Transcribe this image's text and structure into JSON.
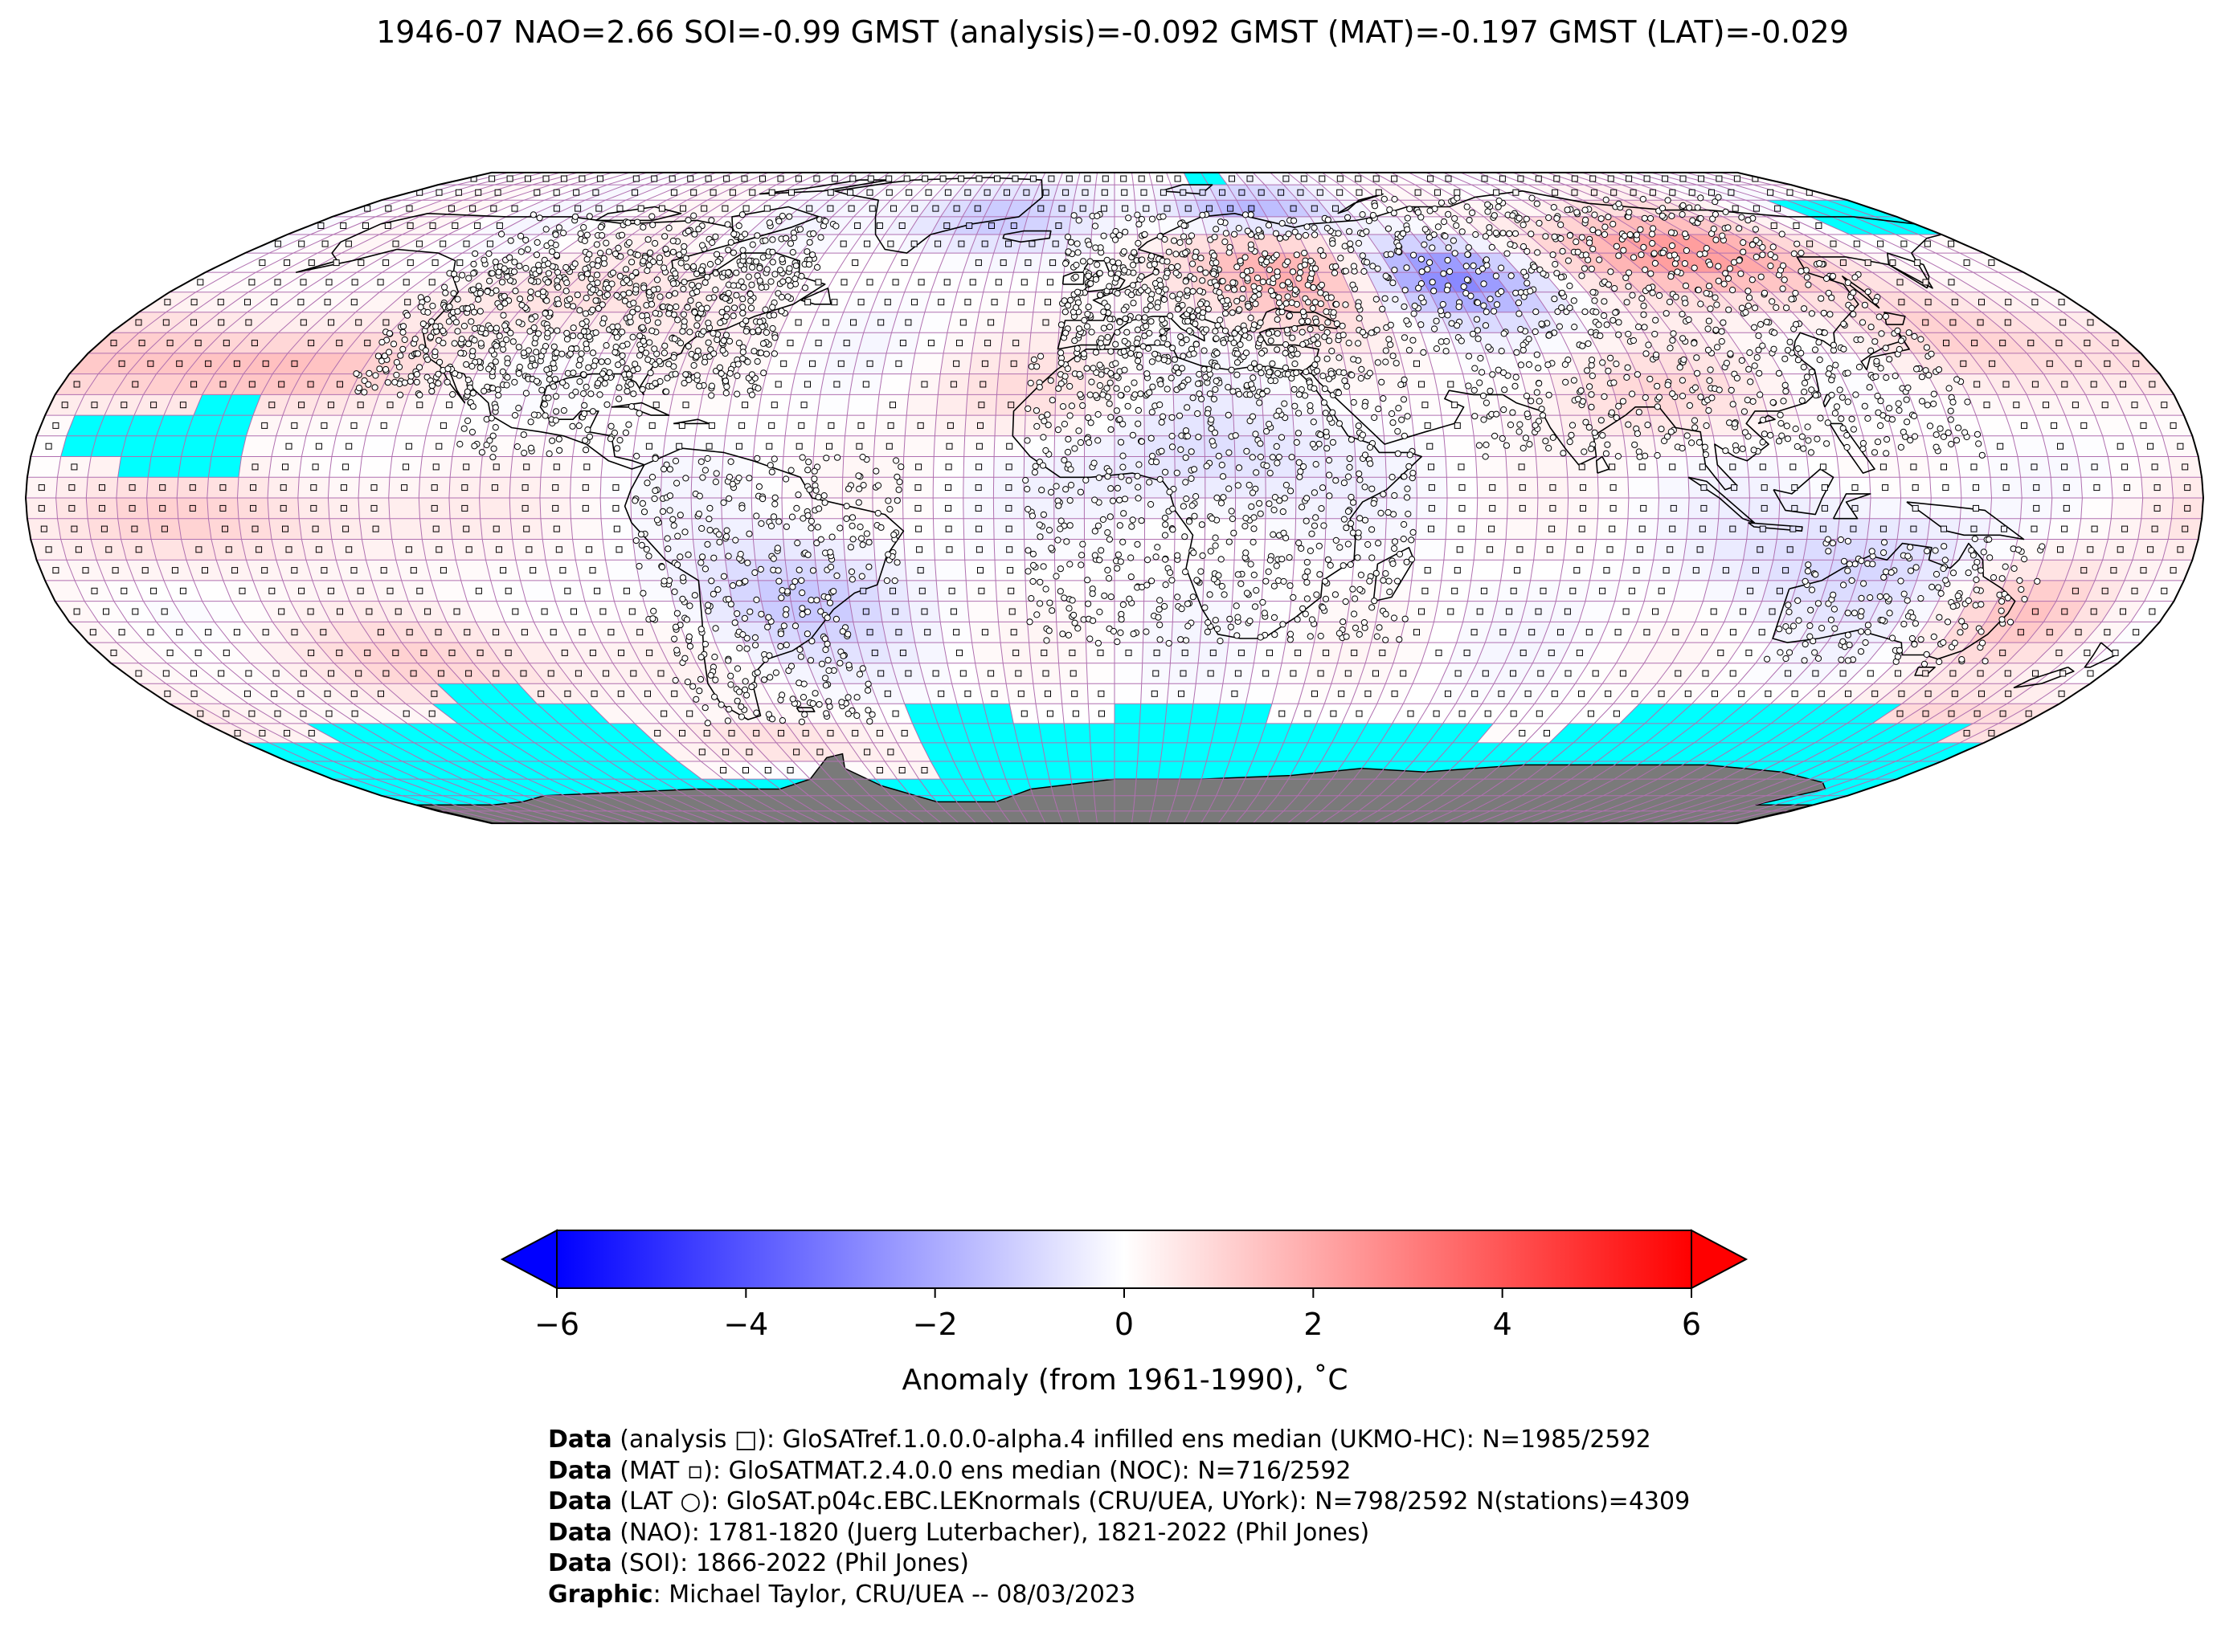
{
  "title": "1946-07 NAO=2.66 SOI=-0.99 GMST (analysis)=-0.092 GMST (MAT)=-0.197 GMST (LAT)=-0.029",
  "colors": {
    "no_data": "#00ffff",
    "land_ice": "#7a7a7a",
    "grid_lines": "#b070b0",
    "coast": "#000000",
    "cmap_low": "#0000ff",
    "cmap_mid": "#ffffff",
    "cmap_high": "#ff0000"
  },
  "colorbar": {
    "min": -6,
    "max": 6,
    "ticks": [
      "−6",
      "−4",
      "−2",
      "0",
      "2",
      "4",
      "6"
    ],
    "tick_values": [
      -6,
      -4,
      -2,
      0,
      2,
      4,
      6
    ],
    "label": "Anomaly (from 1961-1990), ˚C",
    "extend": "both"
  },
  "map": {
    "projection": "Robinson",
    "grid": "5x5 degree",
    "markers": {
      "analysis": "square",
      "mat": "small-square",
      "lat": "circle"
    }
  },
  "credits": [
    {
      "label": "Data",
      "text": " (analysis □): GloSATref.1.0.0.0-alpha.4 infilled ens median (UKMO-HC): N=1985/2592"
    },
    {
      "label": "Data",
      "text": " (MAT ▫): GloSATMAT.2.4.0.0 ens median (NOC): N=716/2592"
    },
    {
      "label": "Data",
      "text": " (LAT ○): GloSAT.p04c.EBC.LEKnormals (CRU/UEA, UYork): N=798/2592 N(stations)=4309"
    },
    {
      "label": "Data",
      "text": " (NAO): 1781-1820 (Juerg Luterbacher), 1821-2022 (Phil Jones)"
    },
    {
      "label": "Data",
      "text": " (SOI): 1866-2022 (Phil Jones)"
    },
    {
      "label": "Graphic",
      "text": ": Michael Taylor, CRU/UEA -- 08/03/2023"
    }
  ]
}
